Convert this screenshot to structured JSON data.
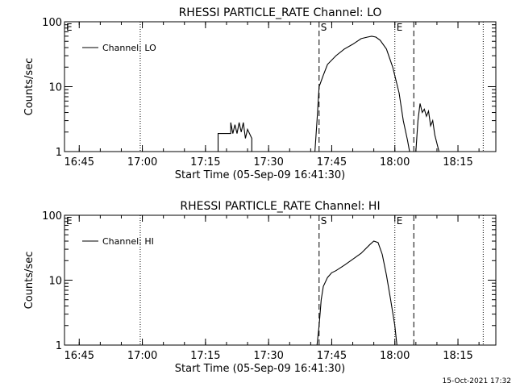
{
  "footer_stamp": "15-Oct-2021 17:32",
  "chart_data": [
    {
      "type": "line",
      "title": "RHESSI PARTICLE_RATE Channel: LO",
      "xlabel": "Start Time (05-Sep-09 16:41:30)",
      "ylabel": "Counts/sec",
      "yscale": "log",
      "ylim": [
        1,
        100
      ],
      "xlim": [
        "16:41:30",
        "18:24:00"
      ],
      "x_ticks": [
        "16:45",
        "17:00",
        "17:15",
        "17:30",
        "17:45",
        "18:00",
        "18:15"
      ],
      "y_ticks": [
        "1",
        "10",
        "100"
      ],
      "legend": {
        "label": "Channel: LO",
        "position": "top-left"
      },
      "markers": [
        {
          "label": "E",
          "time": "16:41:30",
          "style": "none"
        },
        {
          "label": "",
          "time": "16:59:30",
          "style": "dotted"
        },
        {
          "label": "S",
          "time": "17:42:00",
          "style": "dashed"
        },
        {
          "label": "E",
          "time": "18:00:00",
          "style": "dotted"
        },
        {
          "label": "",
          "time": "18:04:30",
          "style": "dashed"
        },
        {
          "label": "",
          "time": "18:21:00",
          "style": "dotted"
        }
      ],
      "series": [
        {
          "name": "Channel: LO",
          "x": [
            "17:18:00",
            "17:18:00",
            "17:21:00",
            "17:21:00",
            "17:21:30",
            "17:22:00",
            "17:22:30",
            "17:23:00",
            "17:23:30",
            "17:24:00",
            "17:24:30",
            "17:25:00",
            "17:26:00",
            "17:26:00",
            "17:41:00",
            "17:41:30",
            "17:42:00",
            "17:43:00",
            "17:44:00",
            "17:46:00",
            "17:48:00",
            "17:50:00",
            "17:52:00",
            "17:53:30",
            "17:54:30",
            "17:55:30",
            "17:56:30",
            "17:58:00",
            "17:59:30",
            "18:01:00",
            "18:02:00",
            "18:03:00",
            "18:03:30",
            "18:05:00",
            "18:05:30",
            "18:06:00",
            "18:06:30",
            "18:07:00",
            "18:07:30",
            "18:08:00",
            "18:08:30",
            "18:09:00",
            "18:09:30",
            "18:10:30"
          ],
          "y": [
            1,
            1.9,
            1.9,
            2.8,
            1.9,
            2.6,
            1.9,
            2.8,
            2.0,
            2.8,
            1.6,
            2.2,
            1.6,
            1,
            1,
            3,
            10,
            15,
            22,
            30,
            38,
            45,
            55,
            58,
            60,
            58,
            52,
            38,
            20,
            8,
            3,
            1.5,
            1,
            1,
            3,
            5.5,
            4,
            4.5,
            3.5,
            4.2,
            2.5,
            3,
            1.8,
            1
          ]
        }
      ]
    },
    {
      "type": "line",
      "title": "RHESSI PARTICLE_RATE Channel: HI",
      "xlabel": "Start Time (05-Sep-09 16:41:30)",
      "ylabel": "Counts/sec",
      "yscale": "log",
      "ylim": [
        1,
        100
      ],
      "xlim": [
        "16:41:30",
        "18:24:00"
      ],
      "x_ticks": [
        "16:45",
        "17:00",
        "17:15",
        "17:30",
        "17:45",
        "18:00",
        "18:15"
      ],
      "y_ticks": [
        "1",
        "10",
        "100"
      ],
      "legend": {
        "label": "Channel: HI",
        "position": "top-left"
      },
      "markers": [
        {
          "label": "E",
          "time": "16:41:30",
          "style": "none"
        },
        {
          "label": "",
          "time": "16:59:30",
          "style": "dotted"
        },
        {
          "label": "S",
          "time": "17:42:00",
          "style": "dashed"
        },
        {
          "label": "E",
          "time": "18:00:00",
          "style": "dotted"
        },
        {
          "label": "",
          "time": "18:04:30",
          "style": "dashed"
        },
        {
          "label": "",
          "time": "18:21:00",
          "style": "dotted"
        }
      ],
      "series": [
        {
          "name": "Channel: HI",
          "x": [
            "17:41:30",
            "17:42:00",
            "17:42:30",
            "17:43:00",
            "17:44:00",
            "17:45:00",
            "17:46:00",
            "17:48:00",
            "17:50:00",
            "17:52:00",
            "17:54:00",
            "17:55:00",
            "17:56:00",
            "17:57:00",
            "17:58:00",
            "17:59:00",
            "18:00:00",
            "18:00:30"
          ],
          "y": [
            1,
            2,
            5,
            8,
            11,
            13,
            14,
            17,
            21,
            26,
            35,
            40,
            38,
            25,
            12,
            5,
            2,
            1
          ]
        }
      ]
    }
  ]
}
